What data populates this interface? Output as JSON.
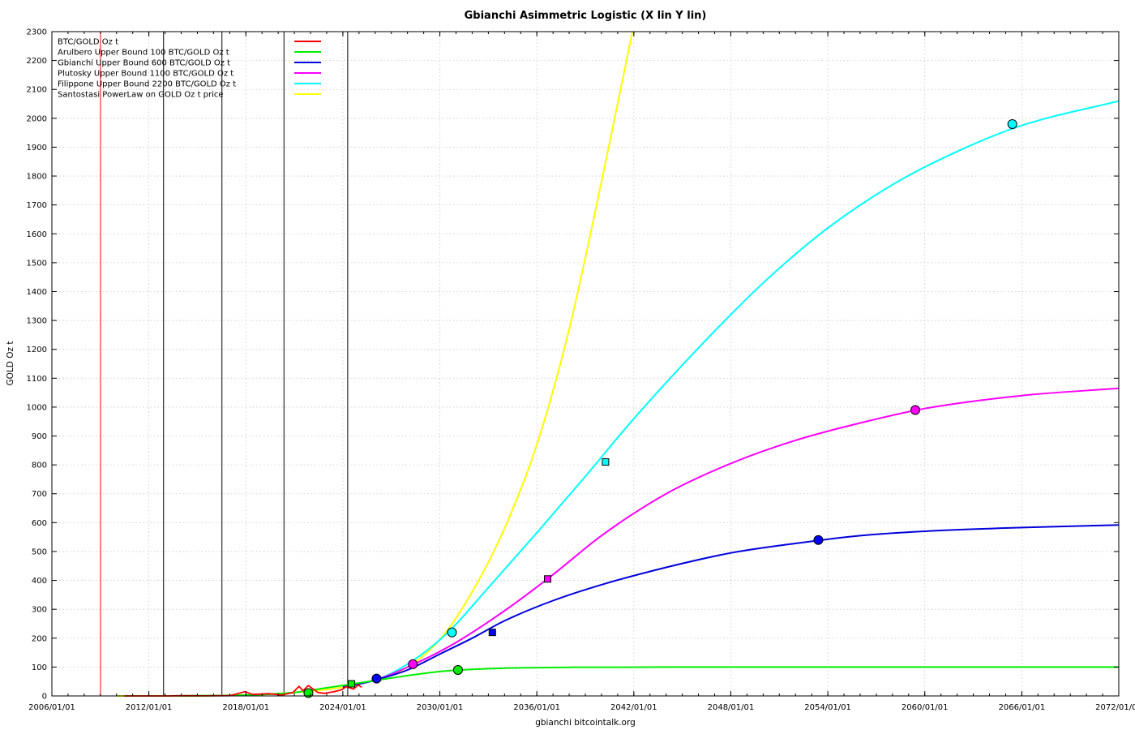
{
  "chart_data": {
    "type": "line",
    "title": "Gbianchi Asimmetric Logistic (X lin Y lin)",
    "xlabel": "gbianchi bitcointalk.org",
    "ylabel": "GOLD Oz t",
    "xlim": [
      "2006-01-01",
      "2072-01-01"
    ],
    "ylim": [
      0,
      2300
    ],
    "x_tick_labels": [
      "2006/01/01",
      "2012/01/01",
      "2018/01/01",
      "2024/01/01",
      "2030/01/01",
      "2036/01/01",
      "2042/01/01",
      "2048/01/01",
      "2054/01/01",
      "2060/01/01",
      "2066/01/01",
      "2072/01/01"
    ],
    "y_ticks": [
      0,
      100,
      200,
      300,
      400,
      500,
      600,
      700,
      800,
      900,
      1000,
      1100,
      1200,
      1300,
      1400,
      1500,
      1600,
      1700,
      1800,
      1900,
      2000,
      2100,
      2200,
      2300
    ],
    "grid": true,
    "legend_position": "top-left",
    "vertical_markers": [
      {
        "x": "2009-01-03",
        "color": "#ff0000"
      },
      {
        "x": "2012-11-28",
        "color": "#000000"
      },
      {
        "x": "2016-07-09",
        "color": "#000000"
      },
      {
        "x": "2020-05-11",
        "color": "#000000"
      },
      {
        "x": "2024-04-20",
        "color": "#000000"
      }
    ],
    "series": [
      {
        "name": "BTC/GOLD Oz t",
        "color": "#ff0000",
        "points": [
          {
            "x": "2010-07-01",
            "y": 0.0
          },
          {
            "x": "2013-04-01",
            "y": 0.1
          },
          {
            "x": "2013-12-01",
            "y": 0.8
          },
          {
            "x": "2015-06-01",
            "y": 0.2
          },
          {
            "x": "2017-01-01",
            "y": 0.8
          },
          {
            "x": "2017-12-15",
            "y": 15
          },
          {
            "x": "2018-06-01",
            "y": 5
          },
          {
            "x": "2019-06-01",
            "y": 8
          },
          {
            "x": "2020-03-15",
            "y": 3
          },
          {
            "x": "2020-12-01",
            "y": 12
          },
          {
            "x": "2021-04-15",
            "y": 33
          },
          {
            "x": "2021-07-15",
            "y": 18
          },
          {
            "x": "2021-11-10",
            "y": 36
          },
          {
            "x": "2022-06-15",
            "y": 12
          },
          {
            "x": "2022-11-15",
            "y": 9
          },
          {
            "x": "2023-06-15",
            "y": 15
          },
          {
            "x": "2023-12-15",
            "y": 22
          },
          {
            "x": "2024-03-15",
            "y": 32
          },
          {
            "x": "2024-09-01",
            "y": 24
          },
          {
            "x": "2024-12-10",
            "y": 38
          },
          {
            "x": "2025-03-01",
            "y": 30
          }
        ]
      },
      {
        "name": "Arulbero Upper Bound 100  BTC/GOLD Oz t",
        "color": "#00ee00",
        "points": [
          {
            "x": "2014-01-01",
            "y": 0.5
          },
          {
            "x": "2018-01-01",
            "y": 3
          },
          {
            "x": "2021-01-01",
            "y": 12
          },
          {
            "x": "2023-01-01",
            "y": 28
          },
          {
            "x": "2025-01-01",
            "y": 45
          },
          {
            "x": "2027-01-01",
            "y": 62
          },
          {
            "x": "2029-01-01",
            "y": 78
          },
          {
            "x": "2031-01-01",
            "y": 89
          },
          {
            "x": "2034-01-01",
            "y": 96
          },
          {
            "x": "2038-01-01",
            "y": 99
          },
          {
            "x": "2045-01-01",
            "y": 100
          },
          {
            "x": "2072-01-01",
            "y": 100
          }
        ]
      },
      {
        "name": "Gbianchi Upper Bound 600  BTC/GOLD Oz t",
        "color": "#0000dd",
        "points": [
          {
            "x": "2024-01-01",
            "y": 30
          },
          {
            "x": "2026-01-01",
            "y": 55
          },
          {
            "x": "2028-01-01",
            "y": 90
          },
          {
            "x": "2030-01-01",
            "y": 145
          },
          {
            "x": "2032-01-01",
            "y": 200
          },
          {
            "x": "2034-01-01",
            "y": 260
          },
          {
            "x": "2037-01-01",
            "y": 330
          },
          {
            "x": "2040-01-01",
            "y": 385
          },
          {
            "x": "2044-01-01",
            "y": 445
          },
          {
            "x": "2048-01-01",
            "y": 495
          },
          {
            "x": "2052-01-01",
            "y": 528
          },
          {
            "x": "2056-01-01",
            "y": 555
          },
          {
            "x": "2060-01-01",
            "y": 570
          },
          {
            "x": "2066-01-01",
            "y": 583
          },
          {
            "x": "2072-01-01",
            "y": 592
          }
        ]
      },
      {
        "name": "Plutosky Upper Bound 1100  BTC/GOLD Oz t",
        "color": "#ff00ff",
        "points": [
          {
            "x": "2024-01-01",
            "y": 30
          },
          {
            "x": "2026-01-01",
            "y": 55
          },
          {
            "x": "2028-06-01",
            "y": 110
          },
          {
            "x": "2031-01-01",
            "y": 185
          },
          {
            "x": "2034-01-01",
            "y": 295
          },
          {
            "x": "2037-01-01",
            "y": 420
          },
          {
            "x": "2040-01-01",
            "y": 555
          },
          {
            "x": "2044-01-01",
            "y": 700
          },
          {
            "x": "2048-01-01",
            "y": 805
          },
          {
            "x": "2052-01-01",
            "y": 885
          },
          {
            "x": "2056-01-01",
            "y": 945
          },
          {
            "x": "2060-01-01",
            "y": 995
          },
          {
            "x": "2066-01-01",
            "y": 1040
          },
          {
            "x": "2072-01-01",
            "y": 1065
          }
        ]
      },
      {
        "name": "Filippone Upper Bound 2200  BTC/GOLD Oz t",
        "color": "#00ffff",
        "points": [
          {
            "x": "2024-01-01",
            "y": 30
          },
          {
            "x": "2026-01-01",
            "y": 55
          },
          {
            "x": "2028-01-01",
            "y": 110
          },
          {
            "x": "2030-06-01",
            "y": 215
          },
          {
            "x": "2033-01-01",
            "y": 375
          },
          {
            "x": "2036-01-01",
            "y": 565
          },
          {
            "x": "2039-01-01",
            "y": 760
          },
          {
            "x": "2042-01-01",
            "y": 960
          },
          {
            "x": "2046-01-01",
            "y": 1205
          },
          {
            "x": "2050-01-01",
            "y": 1430
          },
          {
            "x": "2054-01-01",
            "y": 1620
          },
          {
            "x": "2058-01-01",
            "y": 1770
          },
          {
            "x": "2062-01-01",
            "y": 1885
          },
          {
            "x": "2066-01-01",
            "y": 1975
          },
          {
            "x": "2072-01-01",
            "y": 2060
          }
        ]
      },
      {
        "name": "Santostasi PowerLaw on GOLD Oz t price",
        "color": "#ffff00",
        "points": [
          {
            "x": "2010-01-01",
            "y": 0
          },
          {
            "x": "2016-01-01",
            "y": 1
          },
          {
            "x": "2020-01-01",
            "y": 8
          },
          {
            "x": "2024-01-01",
            "y": 30
          },
          {
            "x": "2026-01-01",
            "y": 55
          },
          {
            "x": "2028-01-01",
            "y": 100
          },
          {
            "x": "2030-01-01",
            "y": 195
          },
          {
            "x": "2032-01-01",
            "y": 360
          },
          {
            "x": "2034-01-01",
            "y": 580
          },
          {
            "x": "2036-01-01",
            "y": 870
          },
          {
            "x": "2038-01-01",
            "y": 1270
          },
          {
            "x": "2040-01-01",
            "y": 1780
          },
          {
            "x": "2041-12-01",
            "y": 2300
          }
        ]
      }
    ],
    "markers": [
      {
        "series": "Arulbero Upper Bound 100  BTC/GOLD Oz t",
        "shape": "circle",
        "color": "#00ee00",
        "x": "2021-11-15",
        "y": 10
      },
      {
        "series": "Arulbero Upper Bound 100  BTC/GOLD Oz t",
        "shape": "square",
        "color": "#00ee00",
        "x": "2024-07-15",
        "y": 42
      },
      {
        "series": "Arulbero Upper Bound 100  BTC/GOLD Oz t",
        "shape": "circle",
        "color": "#00ee00",
        "x": "2031-02-15",
        "y": 90
      },
      {
        "series": "Gbianchi Upper Bound 600  BTC/GOLD Oz t",
        "shape": "circle",
        "color": "#0000ff",
        "x": "2026-02-01",
        "y": 60
      },
      {
        "series": "Gbianchi Upper Bound 600  BTC/GOLD Oz t",
        "shape": "square",
        "color": "#0000ff",
        "x": "2033-04-01",
        "y": 220
      },
      {
        "series": "Gbianchi Upper Bound 600  BTC/GOLD Oz t",
        "shape": "circle",
        "color": "#0000ff",
        "x": "2053-06-01",
        "y": 540
      },
      {
        "series": "Plutosky Upper Bound 1100  BTC/GOLD Oz t",
        "shape": "circle",
        "color": "#ff00ff",
        "x": "2028-05-01",
        "y": 110
      },
      {
        "series": "Plutosky Upper Bound 1100  BTC/GOLD Oz t",
        "shape": "square",
        "color": "#ff00ff",
        "x": "2036-09-01",
        "y": 405
      },
      {
        "series": "Plutosky Upper Bound 1100  BTC/GOLD Oz t",
        "shape": "circle",
        "color": "#ff00ff",
        "x": "2059-06-01",
        "y": 990
      },
      {
        "series": "Filippone Upper Bound 2200  BTC/GOLD Oz t",
        "shape": "circle",
        "color": "#00ffff",
        "x": "2030-10-01",
        "y": 220
      },
      {
        "series": "Filippone Upper Bound 2200  BTC/GOLD Oz t",
        "shape": "square",
        "color": "#00ffff",
        "x": "2040-04-01",
        "y": 810
      },
      {
        "series": "Filippone Upper Bound 2200  BTC/GOLD Oz t",
        "shape": "circle",
        "color": "#00ffff",
        "x": "2065-06-01",
        "y": 1980
      }
    ]
  }
}
